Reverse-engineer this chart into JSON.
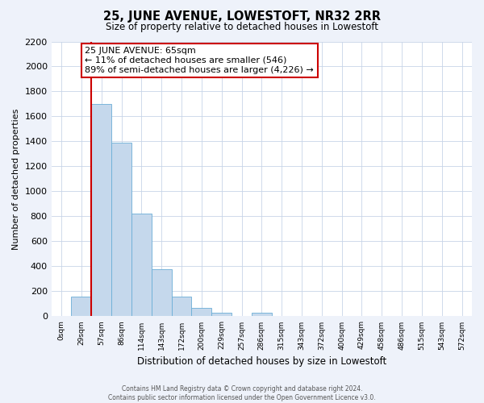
{
  "title": "25, JUNE AVENUE, LOWESTOFT, NR32 2RR",
  "subtitle": "Size of property relative to detached houses in Lowestoft",
  "xlabel": "Distribution of detached houses by size in Lowestoft",
  "ylabel": "Number of detached properties",
  "bar_labels": [
    "0sqm",
    "29sqm",
    "57sqm",
    "86sqm",
    "114sqm",
    "143sqm",
    "172sqm",
    "200sqm",
    "229sqm",
    "257sqm",
    "286sqm",
    "315sqm",
    "343sqm",
    "372sqm",
    "400sqm",
    "429sqm",
    "458sqm",
    "486sqm",
    "515sqm",
    "543sqm",
    "572sqm"
  ],
  "bar_values": [
    0,
    155,
    1700,
    1390,
    820,
    380,
    160,
    65,
    30,
    0,
    30,
    0,
    0,
    0,
    0,
    0,
    0,
    0,
    0,
    0,
    0
  ],
  "bar_color": "#c5d8ec",
  "bar_edge_color": "#6baed6",
  "ylim": [
    0,
    2200
  ],
  "yticks": [
    0,
    200,
    400,
    600,
    800,
    1000,
    1200,
    1400,
    1600,
    1800,
    2000,
    2200
  ],
  "vline_x_index": 2,
  "vline_color": "#cc0000",
  "annotation_title": "25 JUNE AVENUE: 65sqm",
  "annotation_line1": "← 11% of detached houses are smaller (546)",
  "annotation_line2": "89% of semi-detached houses are larger (4,226) →",
  "footer_line1": "Contains HM Land Registry data © Crown copyright and database right 2024.",
  "footer_line2": "Contains public sector information licensed under the Open Government Licence v3.0.",
  "bg_color": "#eef2fa",
  "plot_bg_color": "#ffffff",
  "grid_color": "#c8d4e8"
}
